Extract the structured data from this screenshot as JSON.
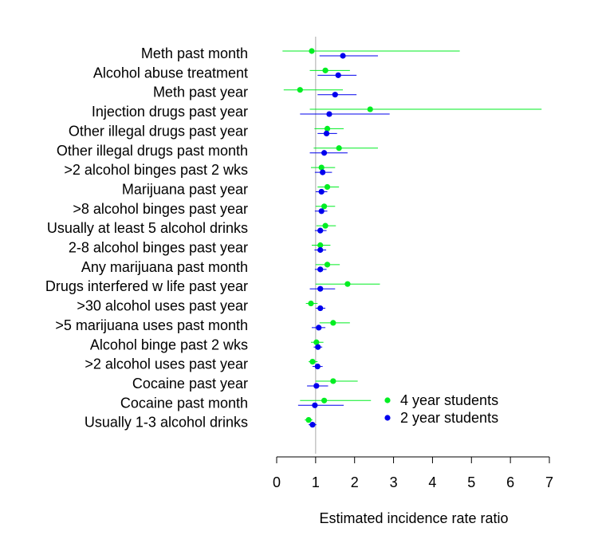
{
  "chart_data": {
    "type": "forest",
    "xlabel": "Estimated incidence rate ratio",
    "xlim": [
      0,
      7
    ],
    "x_ticks": [
      0,
      1,
      2,
      3,
      4,
      5,
      6,
      7
    ],
    "reference_line": 1,
    "categories": [
      "Meth past month",
      "Alcohol abuse treatment",
      "Meth past year",
      "Injection drugs past year",
      "Other illegal drugs past year",
      "Other illegal drugs past month",
      ">2 alcohol binges past 2 wks",
      "Marijuana past year",
      ">8 alcohol binges past year",
      "Usually at least 5 alcohol drinks",
      "2-8 alcohol binges past year",
      "Any marijuana past month",
      "Drugs interfered w life past year",
      ">30 alcohol uses past year",
      ">5 marijuana uses past month",
      "Alcohol binge past 2 wks",
      ">2 alcohol uses past year",
      "Cocaine past year",
      "Cocaine past month",
      "Usually 1-3 alcohol drinks"
    ],
    "series": [
      {
        "name": "4 year students",
        "color": "#00ee22",
        "estimates": [
          0.9,
          1.25,
          0.6,
          2.4,
          1.3,
          1.6,
          1.15,
          1.3,
          1.22,
          1.25,
          1.12,
          1.3,
          1.82,
          0.88,
          1.45,
          1.02,
          0.92,
          1.45,
          1.22,
          0.82
        ],
        "lower": [
          0.15,
          0.85,
          0.18,
          0.85,
          0.97,
          0.95,
          0.88,
          1.05,
          1.0,
          1.02,
          0.9,
          1.0,
          1.0,
          0.75,
          1.1,
          0.88,
          0.82,
          1.0,
          0.6,
          0.72
        ],
        "upper": [
          4.7,
          1.88,
          1.7,
          6.8,
          1.72,
          2.6,
          1.5,
          1.6,
          1.5,
          1.52,
          1.38,
          1.62,
          2.65,
          1.05,
          1.88,
          1.2,
          1.05,
          2.08,
          2.42,
          0.92
        ]
      },
      {
        "name": "2 year students",
        "color": "#0000ee",
        "estimates": [
          1.7,
          1.58,
          1.5,
          1.35,
          1.28,
          1.22,
          1.18,
          1.15,
          1.15,
          1.12,
          1.12,
          1.12,
          1.12,
          1.12,
          1.08,
          1.06,
          1.05,
          1.02,
          0.98,
          0.92
        ],
        "lower": [
          1.1,
          1.05,
          1.05,
          0.6,
          1.05,
          0.85,
          0.98,
          1.0,
          0.98,
          0.98,
          0.97,
          0.98,
          0.85,
          1.0,
          0.9,
          0.95,
          0.92,
          0.78,
          0.55,
          0.82
        ],
        "upper": [
          2.6,
          2.05,
          2.05,
          2.9,
          1.55,
          1.82,
          1.42,
          1.3,
          1.3,
          1.28,
          1.27,
          1.28,
          1.5,
          1.25,
          1.25,
          1.17,
          1.18,
          1.32,
          1.72,
          1.02
        ]
      }
    ],
    "legend": {
      "placement": "bottom-right",
      "entries": [
        "4 year students",
        "2 year students"
      ]
    }
  }
}
